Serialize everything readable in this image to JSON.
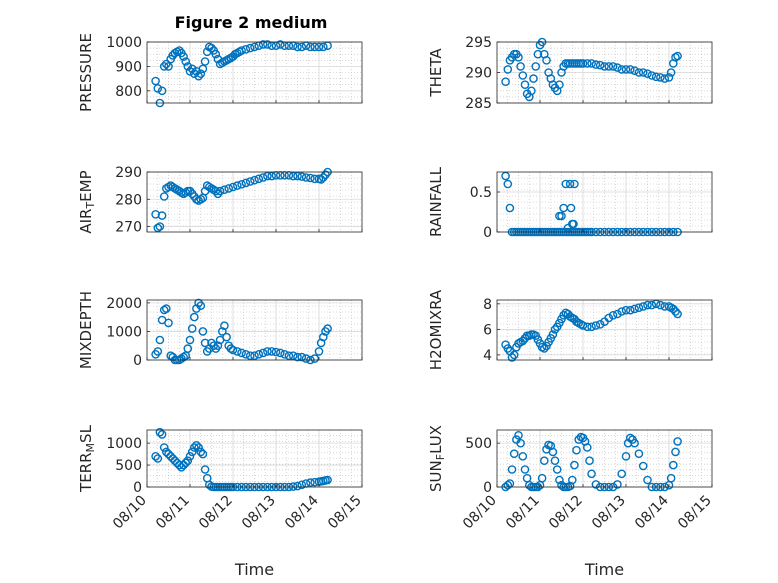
{
  "figure": {
    "title": "Figure 2 medium"
  },
  "colors": {
    "marker": "#0072BD",
    "axis": "#262626",
    "grid": "#bdbdbd"
  },
  "chart_data": [
    {
      "type": "scatter",
      "title": "Figure 2 medium",
      "ylabel": "PRESSURE",
      "ylim": [
        750,
        1000
      ],
      "yticks": [
        "800",
        "900",
        "1000"
      ],
      "yticks_values": [
        800,
        900,
        1000
      ],
      "xlim": [
        0,
        5
      ],
      "xlabel": "",
      "x": [
        0.2,
        0.25,
        0.3,
        0.35,
        0.4,
        0.45,
        0.5,
        0.55,
        0.6,
        0.65,
        0.7,
        0.75,
        0.8,
        0.85,
        0.9,
        0.95,
        1.0,
        1.05,
        1.1,
        1.15,
        1.2,
        1.25,
        1.3,
        1.35,
        1.4,
        1.45,
        1.5,
        1.55,
        1.6,
        1.65,
        1.7,
        1.75,
        1.8,
        1.85,
        1.9,
        1.95,
        2.0,
        2.05,
        2.1,
        2.15,
        2.2,
        2.3,
        2.4,
        2.5,
        2.6,
        2.7,
        2.8,
        2.9,
        3.0,
        3.1,
        3.2,
        3.3,
        3.4,
        3.5,
        3.6,
        3.7,
        3.8,
        3.9,
        4.0,
        4.1,
        4.2
      ],
      "y": [
        840,
        810,
        750,
        800,
        900,
        910,
        900,
        930,
        945,
        955,
        960,
        965,
        955,
        940,
        920,
        900,
        880,
        890,
        870,
        880,
        860,
        870,
        890,
        920,
        960,
        980,
        975,
        965,
        950,
        930,
        910,
        915,
        920,
        925,
        930,
        935,
        940,
        950,
        955,
        960,
        965,
        970,
        975,
        980,
        985,
        990,
        990,
        985,
        985,
        990,
        985,
        985,
        985,
        980,
        980,
        985,
        980,
        980,
        980,
        980,
        985
      ]
    },
    {
      "type": "scatter",
      "ylabel": "THETA",
      "ylim": [
        285,
        295
      ],
      "yticks": [
        "285",
        "290",
        "295"
      ],
      "yticks_values": [
        285,
        290,
        295
      ],
      "xlim": [
        0,
        5
      ],
      "xlabel": "",
      "x": [
        0.2,
        0.25,
        0.3,
        0.35,
        0.4,
        0.45,
        0.5,
        0.55,
        0.6,
        0.65,
        0.7,
        0.75,
        0.8,
        0.85,
        0.9,
        0.95,
        1.0,
        1.05,
        1.1,
        1.15,
        1.2,
        1.25,
        1.3,
        1.35,
        1.4,
        1.45,
        1.5,
        1.55,
        1.6,
        1.65,
        1.7,
        1.75,
        1.8,
        1.85,
        1.9,
        1.95,
        2.0,
        2.1,
        2.2,
        2.3,
        2.4,
        2.5,
        2.6,
        2.7,
        2.8,
        2.9,
        3.0,
        3.1,
        3.2,
        3.3,
        3.4,
        3.5,
        3.6,
        3.7,
        3.8,
        3.9,
        4.0,
        4.05,
        4.1,
        4.15,
        4.2
      ],
      "y": [
        288.5,
        290.5,
        292,
        292.5,
        293,
        293,
        292.5,
        291,
        289.5,
        288,
        286.5,
        286,
        287,
        289,
        291,
        293,
        294.5,
        295,
        293,
        292,
        290,
        289,
        288,
        287.5,
        287,
        288,
        290,
        291,
        291.5,
        291.5,
        291.5,
        291.5,
        291.5,
        291.5,
        291.5,
        291.5,
        291.5,
        291.5,
        291.5,
        291.3,
        291.2,
        291,
        291,
        291,
        290.8,
        290.5,
        290.5,
        290.5,
        290.3,
        290,
        290,
        289.8,
        289.5,
        289.3,
        289.2,
        289,
        289.2,
        290,
        291.5,
        292.5,
        292.7
      ]
    },
    {
      "type": "scatter",
      "ylabel": "AIR_TEMP",
      "ylim": [
        268,
        290
      ],
      "yticks": [
        "270",
        "280",
        "290"
      ],
      "yticks_values": [
        270,
        280,
        290
      ],
      "xlim": [
        0,
        5
      ],
      "xlabel": "",
      "x": [
        0.2,
        0.25,
        0.3,
        0.35,
        0.4,
        0.45,
        0.5,
        0.55,
        0.6,
        0.65,
        0.7,
        0.75,
        0.8,
        0.85,
        0.9,
        0.95,
        1.0,
        1.05,
        1.1,
        1.15,
        1.2,
        1.25,
        1.3,
        1.35,
        1.4,
        1.45,
        1.5,
        1.55,
        1.6,
        1.65,
        1.7,
        1.8,
        1.9,
        2.0,
        2.1,
        2.2,
        2.3,
        2.4,
        2.5,
        2.6,
        2.7,
        2.8,
        2.9,
        3.0,
        3.1,
        3.2,
        3.3,
        3.4,
        3.5,
        3.6,
        3.7,
        3.8,
        3.9,
        4.0,
        4.05,
        4.1,
        4.15,
        4.2
      ],
      "y": [
        274.5,
        269.5,
        270,
        274,
        281,
        284,
        284.5,
        285,
        284.5,
        284,
        283.5,
        283,
        282.5,
        282,
        282.5,
        283,
        283,
        282,
        281,
        280,
        279.5,
        280,
        280.5,
        283,
        285,
        284.5,
        284,
        283.5,
        283,
        282,
        283,
        283.5,
        284,
        284.5,
        285,
        285.5,
        286,
        286.5,
        287,
        287.5,
        288,
        288.5,
        288.5,
        288.8,
        288.8,
        288.8,
        288.8,
        288.5,
        288.5,
        288.3,
        288,
        287.8,
        287.5,
        287.5,
        287.3,
        288,
        289,
        290
      ]
    },
    {
      "type": "scatter",
      "ylabel": "RAINFALL",
      "ylim": [
        0,
        0.75
      ],
      "yticks": [
        "0",
        "0.5"
      ],
      "yticks_values": [
        0,
        0.5
      ],
      "xlim": [
        0,
        5
      ],
      "xlabel": "",
      "x": [
        0.2,
        0.25,
        0.3,
        0.35,
        0.4,
        0.45,
        0.5,
        0.55,
        0.6,
        0.65,
        0.7,
        0.75,
        0.8,
        0.85,
        0.9,
        0.95,
        1.0,
        1.05,
        1.1,
        1.15,
        1.2,
        1.25,
        1.3,
        1.35,
        1.4,
        1.45,
        1.5,
        1.55,
        1.6,
        1.65,
        1.7,
        1.75,
        1.8,
        1.85,
        1.9,
        1.95,
        2.0,
        2.05,
        2.1,
        2.15,
        2.2,
        2.3,
        2.4,
        2.5,
        2.6,
        2.7,
        2.8,
        2.9,
        3.0,
        3.1,
        3.2,
        3.3,
        3.4,
        3.5,
        3.6,
        3.7,
        3.8,
        3.9,
        4.0,
        4.1,
        4.2,
        1.55,
        1.6,
        1.7,
        1.72,
        1.75,
        1.78,
        1.8,
        1.65,
        1.5,
        1.45
      ],
      "y": [
        0.7,
        0.6,
        0.3,
        0,
        0,
        0,
        0,
        0,
        0,
        0,
        0,
        0,
        0,
        0,
        0,
        0,
        0,
        0,
        0,
        0,
        0,
        0,
        0,
        0,
        0,
        0,
        0,
        0,
        0,
        0,
        0,
        0,
        0,
        0,
        0,
        0,
        0,
        0,
        0,
        0,
        0,
        0,
        0,
        0,
        0,
        0,
        0,
        0,
        0,
        0,
        0,
        0,
        0,
        0,
        0,
        0,
        0,
        0,
        0,
        0,
        0,
        0.3,
        0.6,
        0.6,
        0.3,
        0.1,
        0.1,
        0.6,
        0.05,
        0.2,
        0.2
      ]
    },
    {
      "type": "scatter",
      "ylabel": "MIXDEPTH",
      "ylim": [
        0,
        2100
      ],
      "yticks": [
        "0",
        "1000",
        "2000"
      ],
      "yticks_values": [
        0,
        1000,
        2000
      ],
      "xlim": [
        0,
        5
      ],
      "xlabel": "",
      "x": [
        0.2,
        0.25,
        0.3,
        0.35,
        0.4,
        0.45,
        0.5,
        0.55,
        0.6,
        0.65,
        0.7,
        0.75,
        0.8,
        0.85,
        0.9,
        0.95,
        1.0,
        1.05,
        1.1,
        1.15,
        1.2,
        1.25,
        1.3,
        1.35,
        1.4,
        1.45,
        1.5,
        1.55,
        1.6,
        1.65,
        1.7,
        1.75,
        1.8,
        1.85,
        1.9,
        1.95,
        2.0,
        2.1,
        2.2,
        2.3,
        2.4,
        2.5,
        2.6,
        2.7,
        2.8,
        2.9,
        3.0,
        3.1,
        3.2,
        3.3,
        3.4,
        3.5,
        3.6,
        3.7,
        3.8,
        3.9,
        4.0,
        4.05,
        4.1,
        4.15,
        4.2
      ],
      "y": [
        200,
        300,
        700,
        1400,
        1750,
        1800,
        1300,
        150,
        100,
        0,
        0,
        0,
        50,
        100,
        150,
        400,
        700,
        1100,
        1500,
        1800,
        2000,
        1900,
        1000,
        600,
        300,
        400,
        600,
        500,
        400,
        500,
        700,
        1000,
        1200,
        800,
        500,
        400,
        350,
        300,
        250,
        200,
        150,
        150,
        200,
        250,
        300,
        300,
        280,
        250,
        200,
        150,
        150,
        100,
        100,
        50,
        0,
        50,
        300,
        600,
        800,
        1000,
        1100
      ]
    },
    {
      "type": "scatter",
      "ylabel": "H2OMIXRA",
      "ylim": [
        3.6,
        8.3
      ],
      "yticks": [
        "4",
        "6",
        "8"
      ],
      "yticks_values": [
        4,
        6,
        8
      ],
      "xlim": [
        0,
        5
      ],
      "xlabel": "",
      "x": [
        0.2,
        0.25,
        0.3,
        0.35,
        0.4,
        0.45,
        0.5,
        0.55,
        0.6,
        0.65,
        0.7,
        0.75,
        0.8,
        0.85,
        0.9,
        0.95,
        1.0,
        1.05,
        1.1,
        1.15,
        1.2,
        1.25,
        1.3,
        1.35,
        1.4,
        1.45,
        1.5,
        1.55,
        1.6,
        1.65,
        1.7,
        1.75,
        1.8,
        1.85,
        1.9,
        1.95,
        2.0,
        2.1,
        2.2,
        2.3,
        2.4,
        2.5,
        2.6,
        2.7,
        2.8,
        2.9,
        3.0,
        3.1,
        3.2,
        3.3,
        3.4,
        3.5,
        3.6,
        3.7,
        3.8,
        3.9,
        4.0,
        4.05,
        4.1,
        4.15,
        4.2
      ],
      "y": [
        4.8,
        4.5,
        4.3,
        3.8,
        4.0,
        4.6,
        4.9,
        5.0,
        5.1,
        5.3,
        5.5,
        5.5,
        5.6,
        5.6,
        5.5,
        5.2,
        4.9,
        4.6,
        4.5,
        4.7,
        5.0,
        5.3,
        5.6,
        6.0,
        6.2,
        6.5,
        6.8,
        7.1,
        7.3,
        7.2,
        7.0,
        6.9,
        6.8,
        6.6,
        6.5,
        6.4,
        6.3,
        6.2,
        6.2,
        6.3,
        6.4,
        6.6,
        6.9,
        7.1,
        7.2,
        7.4,
        7.5,
        7.5,
        7.6,
        7.7,
        7.8,
        7.9,
        7.9,
        8.0,
        7.9,
        7.8,
        7.8,
        7.7,
        7.6,
        7.4,
        7.2
      ]
    },
    {
      "type": "scatter",
      "ylabel": "TERR_MSL",
      "ylim": [
        0,
        1300
      ],
      "yticks": [
        "0",
        "500",
        "1000"
      ],
      "yticks_values": [
        0,
        500,
        1000
      ],
      "xlim": [
        0,
        5
      ],
      "xlabel": "Time",
      "xticks": [
        "08/10",
        "08/11",
        "08/12",
        "08/13",
        "08/14",
        "08/15"
      ],
      "xticks_values": [
        0,
        1,
        2,
        3,
        4,
        5
      ],
      "x": [
        0.2,
        0.25,
        0.3,
        0.35,
        0.4,
        0.45,
        0.5,
        0.55,
        0.6,
        0.65,
        0.7,
        0.75,
        0.8,
        0.85,
        0.9,
        0.95,
        1.0,
        1.05,
        1.1,
        1.15,
        1.2,
        1.25,
        1.3,
        1.35,
        1.4,
        1.45,
        1.5,
        1.55,
        1.6,
        1.65,
        1.7,
        1.75,
        1.8,
        1.85,
        1.9,
        1.95,
        2.0,
        2.1,
        2.2,
        2.3,
        2.4,
        2.5,
        2.6,
        2.7,
        2.8,
        2.9,
        3.0,
        3.1,
        3.2,
        3.3,
        3.4,
        3.5,
        3.6,
        3.7,
        3.8,
        3.9,
        4.0,
        4.05,
        4.1,
        4.15,
        4.2
      ],
      "y": [
        700,
        650,
        1250,
        1200,
        900,
        800,
        750,
        700,
        650,
        600,
        550,
        500,
        450,
        500,
        550,
        600,
        700,
        800,
        900,
        950,
        900,
        800,
        750,
        400,
        200,
        50,
        10,
        0,
        0,
        0,
        0,
        0,
        0,
        0,
        0,
        0,
        0,
        0,
        0,
        0,
        0,
        0,
        0,
        0,
        0,
        0,
        0,
        0,
        0,
        0,
        10,
        20,
        50,
        80,
        100,
        110,
        120,
        130,
        140,
        150,
        160
      ]
    },
    {
      "type": "scatter",
      "ylabel": "SUN_FLUX",
      "ylim": [
        0,
        650
      ],
      "yticks": [
        "0",
        "500"
      ],
      "yticks_values": [
        0,
        500
      ],
      "xlim": [
        0,
        5
      ],
      "xlabel": "Time",
      "xticks": [
        "08/10",
        "08/11",
        "08/12",
        "08/13",
        "08/14",
        "08/15"
      ],
      "xticks_values": [
        0,
        1,
        2,
        3,
        4,
        5
      ],
      "x": [
        0.2,
        0.25,
        0.3,
        0.35,
        0.4,
        0.45,
        0.5,
        0.55,
        0.6,
        0.65,
        0.7,
        0.75,
        0.8,
        0.85,
        0.9,
        0.95,
        1.0,
        1.05,
        1.1,
        1.15,
        1.2,
        1.25,
        1.3,
        1.35,
        1.4,
        1.45,
        1.5,
        1.55,
        1.6,
        1.65,
        1.7,
        1.75,
        1.8,
        1.85,
        1.9,
        1.95,
        2.0,
        2.05,
        2.1,
        2.15,
        2.2,
        2.3,
        2.4,
        2.5,
        2.6,
        2.7,
        2.8,
        2.9,
        3.0,
        3.05,
        3.1,
        3.15,
        3.2,
        3.3,
        3.4,
        3.5,
        3.6,
        3.7,
        3.8,
        3.9,
        4.0,
        4.05,
        4.1,
        4.15,
        4.2
      ],
      "y": [
        0,
        20,
        40,
        200,
        380,
        540,
        590,
        500,
        350,
        200,
        100,
        20,
        0,
        0,
        0,
        0,
        20,
        100,
        300,
        430,
        480,
        470,
        400,
        300,
        200,
        80,
        20,
        0,
        0,
        0,
        10,
        80,
        250,
        420,
        540,
        570,
        560,
        520,
        450,
        300,
        150,
        30,
        0,
        0,
        0,
        0,
        30,
        150,
        350,
        500,
        560,
        540,
        500,
        380,
        240,
        80,
        0,
        0,
        0,
        0,
        20,
        100,
        250,
        400,
        520
      ]
    }
  ]
}
